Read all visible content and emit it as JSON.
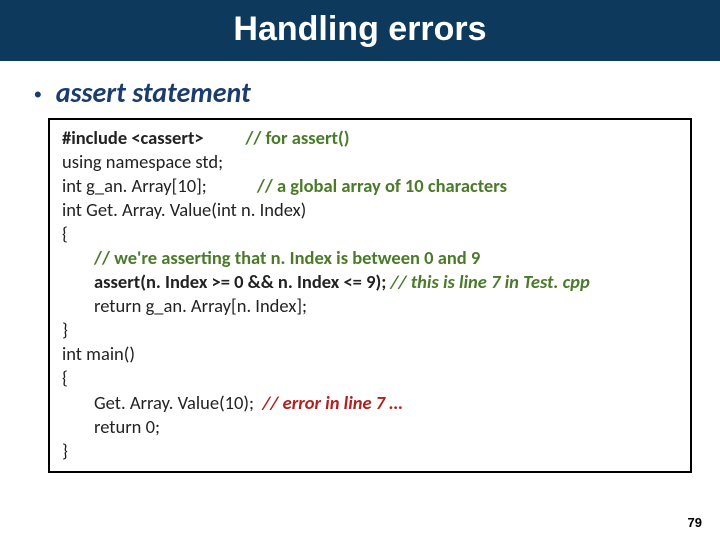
{
  "colors": {
    "title_bg": "#0d3a5c",
    "title_fg": "#ffffff",
    "bullet_color": "#1a3c6e",
    "code_border": "#000000",
    "code_text": "#222222",
    "comment_green": "#4a7a2a",
    "error_red": "#b02020",
    "page_bg": "#ffffff"
  },
  "typography": {
    "title_fontsize": 34,
    "bullet_fontsize": 28,
    "code_fontsize": 18.5,
    "page_num_fontsize": 13,
    "title_font": "Comic Sans MS",
    "body_font": "Calibri"
  },
  "title": "Handling errors",
  "bullet": "assert statement",
  "code": {
    "l1a": "#include <cassert>          ",
    "l1b": "// for assert()",
    "l2": "using namespace std;",
    "l3a": "int g_an. Array[10];            ",
    "l3b": "// a global array of 10 characters",
    "l4": "int Get. Array. Value(int n. Index)",
    "l5": "{",
    "l6": "// we're asserting that n. Index is between 0 and 9",
    "l7a": "assert(n. Index >= 0 && n. Index <= 9); ",
    "l7b": "// this is line 7 in Test. cpp",
    "l8": "return g_an. Array[n. Index];",
    "l9": "}",
    "l10": "int main()",
    "l11": "{",
    "l12a": "Get. Array. Value(10);  ",
    "l12b": "// error in line 7 …",
    "l13": "return 0;",
    "l14": "}"
  },
  "page_number": "79"
}
